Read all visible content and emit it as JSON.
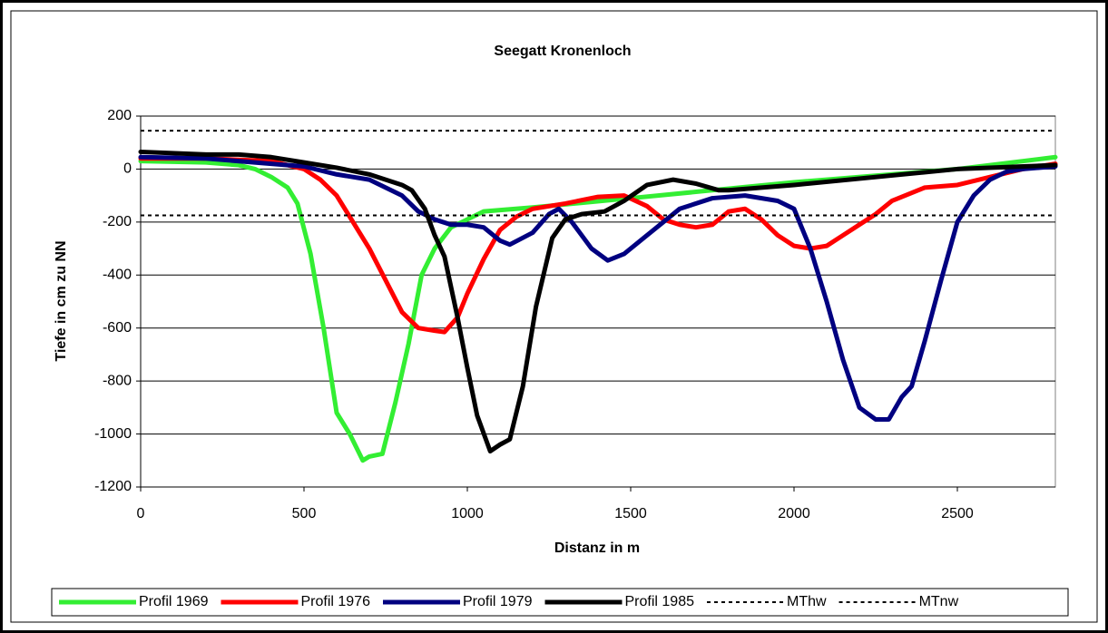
{
  "chart_data": {
    "type": "line",
    "title": "Seegatt Kronenloch",
    "x_label": "Distanz in m",
    "y_label": "Tiefe in cm zu NN",
    "xlim": [
      0,
      2800
    ],
    "xticks": [
      0,
      500,
      1000,
      1500,
      2000,
      2500
    ],
    "ylim": [
      -1200,
      200
    ],
    "yticks": [
      -1200,
      -1000,
      -800,
      -600,
      -400,
      -200,
      0,
      200
    ],
    "grid": true,
    "legend": "bottom",
    "series": [
      {
        "name": "Profil 1969",
        "color": "#33ee33",
        "style": "solid",
        "x": [
          0,
          200,
          300,
          350,
          400,
          450,
          480,
          520,
          560,
          600,
          640,
          680,
          700,
          740,
          780,
          820,
          860,
          900,
          950,
          1000,
          1050,
          1200,
          1500,
          2000,
          2500,
          2800
        ],
        "values": [
          30,
          25,
          15,
          0,
          -30,
          -70,
          -130,
          -320,
          -600,
          -920,
          -1000,
          -1100,
          -1085,
          -1075,
          -880,
          -660,
          -400,
          -300,
          -220,
          -190,
          -160,
          -145,
          -110,
          -50,
          0,
          45
        ]
      },
      {
        "name": "Profil 1976",
        "color": "#ff0000",
        "style": "solid",
        "x": [
          0,
          200,
          400,
          500,
          550,
          600,
          650,
          700,
          750,
          800,
          850,
          900,
          930,
          970,
          1000,
          1050,
          1100,
          1150,
          1200,
          1300,
          1400,
          1480,
          1550,
          1600,
          1650,
          1700,
          1750,
          1800,
          1850,
          1900,
          1950,
          2000,
          2050,
          2100,
          2150,
          2200,
          2250,
          2300,
          2400,
          2500,
          2600,
          2700,
          2800
        ],
        "values": [
          40,
          40,
          30,
          0,
          -40,
          -100,
          -200,
          -300,
          -420,
          -540,
          -600,
          -610,
          -615,
          -560,
          -470,
          -340,
          -230,
          -180,
          -150,
          -130,
          -105,
          -100,
          -140,
          -190,
          -210,
          -220,
          -210,
          -160,
          -150,
          -190,
          -250,
          -290,
          -300,
          -290,
          -250,
          -210,
          -170,
          -120,
          -70,
          -60,
          -30,
          0,
          20
        ]
      },
      {
        "name": "Profil 1979",
        "color": "#000080",
        "style": "solid",
        "x": [
          0,
          200,
          400,
          500,
          600,
          700,
          800,
          850,
          900,
          950,
          1000,
          1050,
          1100,
          1130,
          1200,
          1250,
          1280,
          1320,
          1380,
          1430,
          1480,
          1550,
          1650,
          1750,
          1850,
          1950,
          2000,
          2050,
          2100,
          2150,
          2200,
          2250,
          2290,
          2330,
          2360,
          2400,
          2450,
          2500,
          2550,
          2600,
          2650,
          2700,
          2800
        ],
        "values": [
          45,
          40,
          20,
          10,
          -20,
          -40,
          -100,
          -160,
          -190,
          -210,
          -210,
          -220,
          -270,
          -285,
          -240,
          -170,
          -150,
          -200,
          -300,
          -345,
          -320,
          -250,
          -150,
          -110,
          -100,
          -120,
          -150,
          -300,
          -500,
          -720,
          -900,
          -945,
          -945,
          -860,
          -820,
          -650,
          -420,
          -200,
          -100,
          -40,
          -10,
          0,
          10
        ]
      },
      {
        "name": "Profil 1985",
        "color": "#000000",
        "style": "solid",
        "x": [
          0,
          200,
          300,
          400,
          500,
          600,
          700,
          800,
          830,
          870,
          900,
          930,
          970,
          1000,
          1030,
          1070,
          1100,
          1130,
          1170,
          1210,
          1260,
          1300,
          1350,
          1420,
          1480,
          1550,
          1630,
          1700,
          1770,
          1800,
          2000,
          2500,
          2800
        ],
        "values": [
          65,
          55,
          55,
          45,
          25,
          5,
          -20,
          -60,
          -80,
          -150,
          -250,
          -330,
          -560,
          -750,
          -930,
          -1065,
          -1040,
          -1020,
          -820,
          -520,
          -260,
          -190,
          -170,
          -160,
          -120,
          -60,
          -40,
          -55,
          -80,
          -80,
          -60,
          0,
          15
        ]
      },
      {
        "name": "MThw",
        "color": "#000000",
        "style": "dashed",
        "x": [
          0,
          2800
        ],
        "values": [
          145,
          145
        ]
      },
      {
        "name": "MTnw",
        "color": "#000000",
        "style": "dashed",
        "x": [
          0,
          2800
        ],
        "values": [
          -175,
          -175
        ]
      }
    ]
  }
}
